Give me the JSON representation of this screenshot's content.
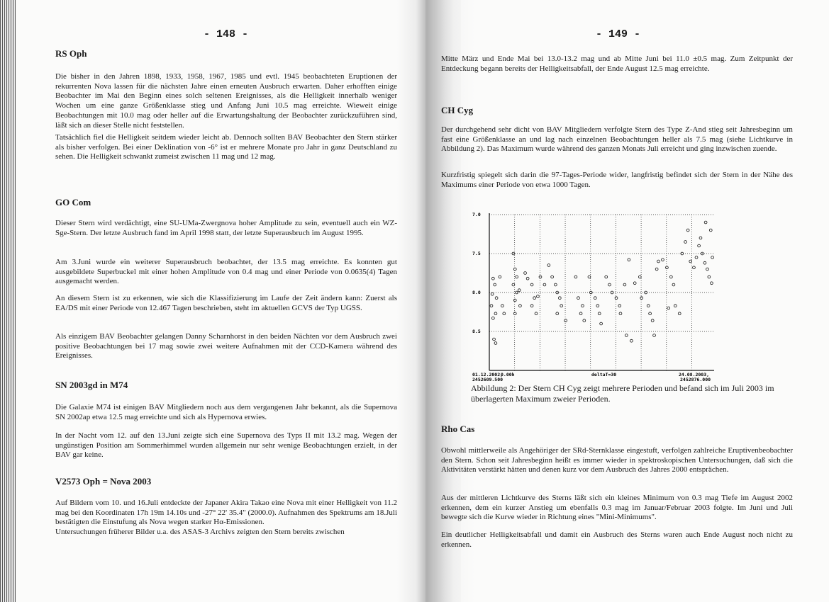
{
  "left_page": {
    "page_number": "- 148 -",
    "sections": [
      {
        "heading": "RS Oph",
        "paragraphs": [
          "Die bisher in den Jahren 1898, 1933, 1958, 1967, 1985 und evtl. 1945 beobachteten Eruptionen der rekurrenten Nova lassen für die nächsten Jahre einen erneuten Ausbruch erwarten. Daher erhofften einige Beobachter im Mai den Beginn eines solch seltenen Ereignisses, als die Helligkeit innerhalb weniger Wochen um eine ganze Größenklasse stieg und Anfang Juni 10.5 mag erreichte. Wieweit einige Beobachtungen mit 10.0 mag oder heller auf die Erwartungshaltung der Beobachter zurückzuführen sind, läßt sich an dieser Stelle nicht feststellen.",
          "Tatsächlich fiel die Helligkeit seitdem wieder leicht ab. Dennoch sollten BAV Beobachter den Stern stärker als bisher verfolgen. Bei einer Deklination von -6°  ist er mehrere Monate pro Jahr in ganz Deutschland zu sehen. Die Helligkeit schwankt zumeist zwischen 11 mag und 12 mag."
        ]
      },
      {
        "heading": "GO Com",
        "paragraphs": [
          "Dieser Stern wird verdächtigt, eine SU-UMa-Zwergnova hoher Amplitude zu sein, eventuell auch ein WZ-Sge-Stern. Der letzte Ausbruch fand im April 1998 statt, der letzte Superausbruch im August 1995.",
          "Am 3.Juni wurde ein weiterer Superausbruch beobachtet, der 13.5 mag erreichte. Es konnten gut ausgebildete Superbuckel mit einer hohen Amplitude von 0.4 mag und einer Periode von 0.0635(4) Tagen ausgemacht werden.",
          "An diesem Stern ist zu erkennen, wie sich die Klassifizierung im Laufe der Zeit ändern kann: Zuerst als EA/DS mit einer Periode von 12.467 Tagen beschrieben, steht im aktuellen GCVS der Typ UGSS.",
          "Als einzigem BAV Beobachter gelangen Danny Scharnhorst in den beiden Nächten vor dem Ausbruch zwei positive Beobachtungen bei 17 mag sowie zwei weitere Aufnahmen mit der CCD-Kamera während des Ereignisses."
        ]
      },
      {
        "heading": "SN 2003gd in M74",
        "paragraphs": [
          "Die Galaxie M74 ist einigen BAV Mitgliedern noch aus dem vergangenen Jahr bekannt, als die Supernova SN 2002ap etwa 12.5 mag erreichte und sich als Hypernova erwies.",
          "In der Nacht vom 12. auf den 13.Juni zeigte sich eine Supernova des Typs II mit 13.2 mag. Wegen der ungünstigen Position am Sommerhimmel wurden allgemein nur sehr wenige Beobachtungen erzielt, in der BAV gar keine."
        ]
      },
      {
        "heading": "V2573 Oph = Nova 2003",
        "paragraphs": [
          "Auf Bildern vom 10. und 16.Juli entdeckte der Japaner Akira Takao eine Nova mit einer Helligkeit von 11.2 mag bei den Koordinaten 17h 19m 14.10s und -27°  22' 35.4\"  (2000.0). Aufnahmen des Spektrums am 18.Juli bestätigten die Einstufung als Nova wegen starker Hα-Emissionen.",
          "Untersuchungen früherer Bilder u.a. des ASAS-3 Archivs zeigten den Stern bereits zwischen"
        ]
      }
    ]
  },
  "right_page": {
    "page_number": "- 149 -",
    "continuation": "Mitte März und Ende Mai bei 13.0-13.2 mag und ab Mitte Juni bei 11.0 ±0.5 mag. Zum Zeitpunkt der Entdeckung begann bereits der Helligkeitsabfall, der Ende August 12.5 mag erreichte.",
    "sections": [
      {
        "heading": "CH Cyg",
        "paragraphs": [
          "Der durchgehend sehr dicht von BAV Mitgliedern verfolgte Stern des Type Z-And stieg seit Jahresbeginn um fast eine Größenklasse an und lag nach einzelnen Beobachtungen heller als 7.5 mag (siehe Lichtkurve in Abbildung 2). Das Maximum wurde während des ganzen Monats Juli erreicht und ging inzwischen zuende.",
          "Kurzfristig spiegelt sich darin die 97-Tages-Periode wider, langfristig befindet sich der Stern in der Nähe des Maximums einer Periode von etwa 1000 Tagen."
        ]
      },
      {
        "heading": "Rho Cas",
        "paragraphs": [
          "Obwohl mittlerweile als Angehöriger der SRd-Sternklasse eingestuft, verfolgen zahlreiche Eruptivenbeobachter den Stern. Schon seit Jahresbeginn heißt es immer wieder in spektroskopischen Untersuchungen, daß sich die Aktivitäten verstärkt hätten und denen kurz vor dem Ausbruch des Jahres 2000 entsprächen.",
          "Aus der mittleren Lichtkurve des Sterns läßt sich ein kleines Minimum von 0.3 mag Tiefe im August 2002 erkennen, dem ein kurzer Anstieg um ebenfalls 0.3 mag im Januar/Februar 2003 folgte. Im Juni und Juli bewegte sich die Kurve wieder in Richtung eines \"Mini-Minimums\".",
          "Ein deutlicher Helligkeitsabfall und damit ein Ausbruch des Sterns waren auch Ende August noch nicht zu erkennen."
        ]
      }
    ],
    "figure_caption": "Abbildung 2: Der Stern CH Cyg zeigt mehrere Perioden und befand sich im Juli 2003 im überlagerten Maximum zweier Perioden."
  },
  "chart_data": {
    "type": "scatter",
    "x_start_label": "01.12.2002,",
    "x_start_jd": "2452609.500",
    "x_origin_label": "0.00h",
    "x_step_label": "deltaT=30",
    "x_end_label": "24.08.2003,",
    "x_end_jd": "2452876.000",
    "xlim": [
      2452609.5,
      2452876.0
    ],
    "x_grid_step_days": 30,
    "ylim": [
      7.0,
      9.0
    ],
    "y_inverted": true,
    "y_ticks": [
      "7.0",
      "7.5",
      "8.0",
      "8.5"
    ],
    "grid": true,
    "marker": "open-circle",
    "points": [
      [
        2452614,
        7.82
      ],
      [
        2452616,
        7.9
      ],
      [
        2452613,
        8.02
      ],
      [
        2452618,
        8.07
      ],
      [
        2452612,
        8.17
      ],
      [
        2452617,
        8.27
      ],
      [
        2452614,
        8.33
      ],
      [
        2452615,
        8.6
      ],
      [
        2452617,
        8.65
      ],
      [
        2452622,
        7.8
      ],
      [
        2452625,
        8.17
      ],
      [
        2452627,
        8.27
      ],
      [
        2452638,
        7.5
      ],
      [
        2452640,
        7.7
      ],
      [
        2452642,
        7.8
      ],
      [
        2452638,
        7.9
      ],
      [
        2452642,
        8.0
      ],
      [
        2452645,
        7.97
      ],
      [
        2452640,
        8.1
      ],
      [
        2452646,
        8.17
      ],
      [
        2452640,
        8.27
      ],
      [
        2452652,
        7.75
      ],
      [
        2452655,
        7.82
      ],
      [
        2452660,
        7.9
      ],
      [
        2452663,
        8.07
      ],
      [
        2452667,
        8.05
      ],
      [
        2452660,
        8.17
      ],
      [
        2452665,
        8.27
      ],
      [
        2452670,
        7.8
      ],
      [
        2452675,
        7.9
      ],
      [
        2452680,
        7.65
      ],
      [
        2452684,
        7.8
      ],
      [
        2452688,
        7.9
      ],
      [
        2452690,
        8.0
      ],
      [
        2452693,
        8.07
      ],
      [
        2452695,
        8.17
      ],
      [
        2452690,
        8.27
      ],
      [
        2452700,
        8.36
      ],
      [
        2452712,
        7.8
      ],
      [
        2452715,
        8.07
      ],
      [
        2452720,
        8.17
      ],
      [
        2452718,
        8.27
      ],
      [
        2452722,
        8.36
      ],
      [
        2452728,
        7.8
      ],
      [
        2452730,
        8.0
      ],
      [
        2452735,
        8.07
      ],
      [
        2452738,
        8.17
      ],
      [
        2452740,
        8.27
      ],
      [
        2452742,
        8.4
      ],
      [
        2452748,
        7.8
      ],
      [
        2452752,
        7.9
      ],
      [
        2452755,
        8.0
      ],
      [
        2452760,
        8.07
      ],
      [
        2452764,
        8.17
      ],
      [
        2452765,
        8.27
      ],
      [
        2452770,
        7.9
      ],
      [
        2452775,
        7.58
      ],
      [
        2452772,
        8.55
      ],
      [
        2452778,
        8.62
      ],
      [
        2452782,
        7.88
      ],
      [
        2452788,
        7.8
      ],
      [
        2452790,
        8.07
      ],
      [
        2452795,
        8.0
      ],
      [
        2452798,
        8.17
      ],
      [
        2452800,
        8.27
      ],
      [
        2452803,
        8.36
      ],
      [
        2452805,
        8.55
      ],
      [
        2452808,
        7.7
      ],
      [
        2452810,
        7.6
      ],
      [
        2452815,
        7.58
      ],
      [
        2452820,
        7.68
      ],
      [
        2452825,
        7.8
      ],
      [
        2452828,
        7.9
      ],
      [
        2452822,
        8.2
      ],
      [
        2452830,
        8.17
      ],
      [
        2452835,
        8.27
      ],
      [
        2452838,
        7.5
      ],
      [
        2452842,
        7.35
      ],
      [
        2452845,
        7.2
      ],
      [
        2452848,
        7.6
      ],
      [
        2452852,
        7.68
      ],
      [
        2452855,
        7.55
      ],
      [
        2452858,
        7.4
      ],
      [
        2452860,
        7.3
      ],
      [
        2452862,
        7.5
      ],
      [
        2452865,
        7.62
      ],
      [
        2452868,
        7.7
      ],
      [
        2452870,
        7.8
      ],
      [
        2452872,
        7.2
      ],
      [
        2452874,
        7.55
      ],
      [
        2452873,
        7.88
      ],
      [
        2452866,
        7.1
      ]
    ]
  }
}
